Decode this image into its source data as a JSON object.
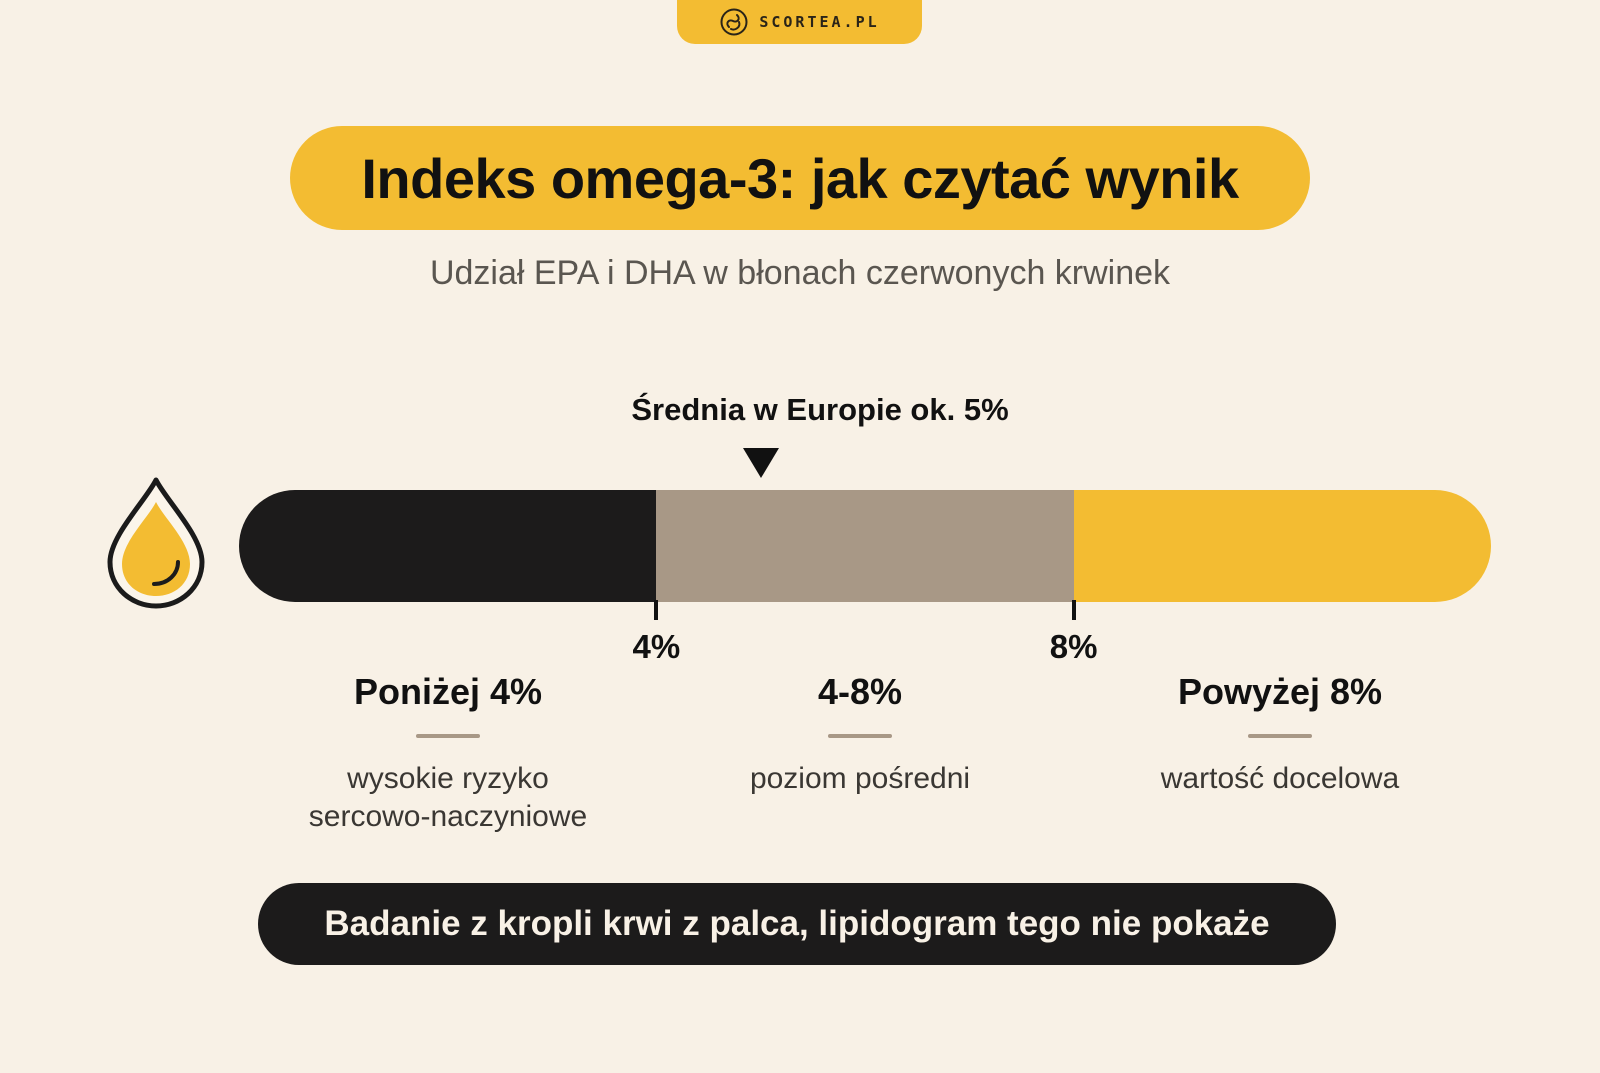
{
  "brand": {
    "logo_icon": "scortea-swirl-logo",
    "name": "SCORTEA.PL"
  },
  "header": {
    "title": "Indeks omega-3: jak czytać wynik",
    "subtitle": "Udział EPA i DHA w błonach czerwonych krwinek"
  },
  "scale": {
    "icon": "oil-drop-icon",
    "marker_label": "Średnia w Europie ok. 5%",
    "marker_value": 5,
    "min": 0,
    "max": 12,
    "segments": [
      {
        "from": 0,
        "to": 4,
        "color": "#1c1b1b"
      },
      {
        "from": 4,
        "to": 8,
        "color": "#a89886"
      },
      {
        "from": 8,
        "to": 12,
        "color": "#f3bc32"
      }
    ],
    "ticks": [
      {
        "value": 4,
        "label": "4%"
      },
      {
        "value": 8,
        "label": "8%"
      }
    ]
  },
  "ranges": [
    {
      "title": "Poniżej 4%",
      "description": "wysokie ryzyko sercowo-naczyniowe"
    },
    {
      "title": "4-8%",
      "description": "poziom pośredni"
    },
    {
      "title": "Powyżej 8%",
      "description": "wartość docelowa"
    }
  ],
  "footer": {
    "note": "Badanie z kropli krwi z palca, lipidogram tego nie pokaże"
  },
  "colors": {
    "background": "#f8f1e6",
    "accent": "#f3bc32",
    "dark": "#1c1b1b",
    "mid": "#a89886"
  }
}
